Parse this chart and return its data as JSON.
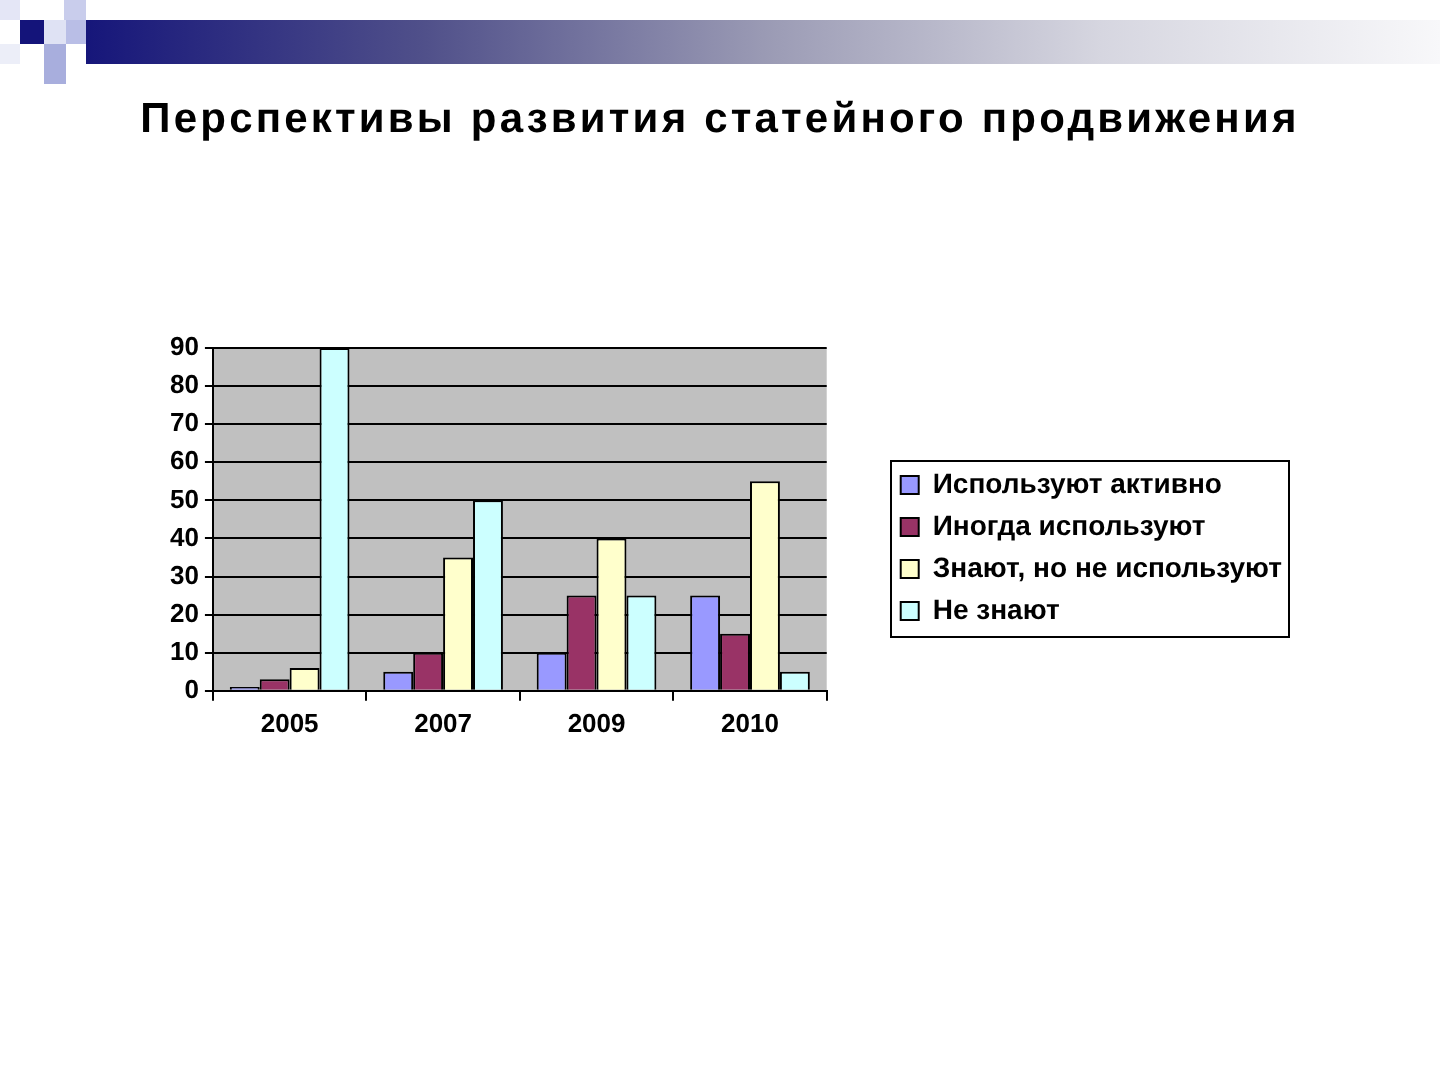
{
  "chart_data": {
    "type": "bar",
    "title": "Перспективы развития статейного продвижения",
    "categories": [
      "2005",
      "2007",
      "2009",
      "2010"
    ],
    "series": [
      {
        "name": "Используют активно",
        "color": "#9999ff",
        "values": [
          1,
          5,
          10,
          25
        ]
      },
      {
        "name": "Иногда используют",
        "color": "#993366",
        "values": [
          3,
          10,
          25,
          15
        ]
      },
      {
        "name": "Знают, но не используют",
        "color": "#ffffcc",
        "values": [
          6,
          35,
          40,
          55
        ]
      },
      {
        "name": "Не знают",
        "color": "#ccffff",
        "values": [
          90,
          50,
          25,
          5
        ]
      }
    ],
    "ylim": [
      0,
      90
    ],
    "yticks": [
      0,
      10,
      20,
      30,
      40,
      50,
      60,
      70,
      80,
      90
    ],
    "grid": "y",
    "legend": "right"
  }
}
